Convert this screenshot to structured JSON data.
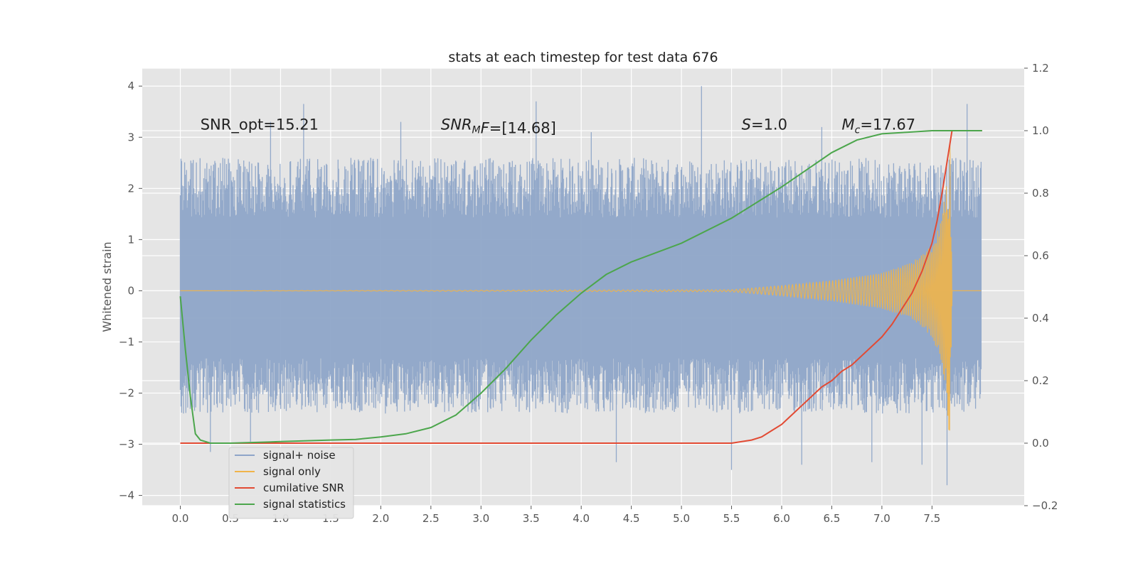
{
  "chart_data": {
    "type": "line",
    "title": "stats at each timestep for test data 676",
    "ylabel": "Whitened strain",
    "xlabel": "",
    "xlim": [
      -0.38,
      8.42
    ],
    "ylim": [
      -4.2,
      4.35
    ],
    "y2lim": [
      -0.2,
      1.2
    ],
    "x_ticks": [
      0.0,
      0.5,
      1.0,
      1.5,
      2.0,
      2.5,
      3.0,
      3.5,
      4.0,
      4.5,
      5.0,
      5.5,
      6.0,
      6.5,
      7.0,
      7.5
    ],
    "x_tick_labels": [
      "0.0",
      "0.5",
      "1.0",
      "1.5",
      "2.0",
      "2.5",
      "3.0",
      "3.5",
      "4.0",
      "4.5",
      "5.0",
      "5.5",
      "6.0",
      "6.5",
      "7.0",
      "7.5"
    ],
    "y_ticks": [
      -4,
      -3,
      -2,
      -1,
      0,
      1,
      2,
      3,
      4
    ],
    "y_tick_labels": [
      "−4",
      "−3",
      "−2",
      "−1",
      "0",
      "1",
      "2",
      "3",
      "4"
    ],
    "y2_ticks": [
      -0.2,
      0.0,
      0.2,
      0.4,
      0.6,
      0.8,
      1.0,
      1.2
    ],
    "y2_tick_labels": [
      "−0.2",
      "0.0",
      "0.2",
      "0.4",
      "0.6",
      "0.8",
      "1.0",
      "1.2"
    ],
    "grid": true,
    "legend_position": "lower-left",
    "annotations": [
      {
        "text": "SNR_opt=15.21",
        "x": 0.2,
        "y": 3.15
      },
      {
        "text": "SNR_MF=[14.68]",
        "x": 2.6,
        "y": 3.15
      },
      {
        "text": "S=1.0",
        "x": 5.6,
        "y": 3.15
      },
      {
        "text": "M_c=17.67",
        "x": 6.6,
        "y": 3.15
      }
    ],
    "series": [
      {
        "name": "signal+ noise",
        "color": "#8ea5c8",
        "axis": "left",
        "x_start": 0.0,
        "x_end": 7.99,
        "envelope_high": 2.6,
        "envelope_low": -2.4,
        "spike_peaks": [
          {
            "x": 1.23,
            "y": 3.65
          },
          {
            "x": 2.2,
            "y": 3.3
          },
          {
            "x": 3.55,
            "y": 3.7
          },
          {
            "x": 5.2,
            "y": 4.0
          },
          {
            "x": 7.85,
            "y": 3.65
          },
          {
            "x": 0.9,
            "y": 3.3
          },
          {
            "x": 4.1,
            "y": 3.1
          },
          {
            "x": 6.4,
            "y": 3.2
          }
        ],
        "spike_troughs": [
          {
            "x": 0.3,
            "y": -3.15
          },
          {
            "x": 0.7,
            "y": -2.95
          },
          {
            "x": 4.35,
            "y": -3.35
          },
          {
            "x": 5.5,
            "y": -3.5
          },
          {
            "x": 6.2,
            "y": -3.4
          },
          {
            "x": 6.9,
            "y": -3.35
          },
          {
            "x": 7.65,
            "y": -3.8
          },
          {
            "x": 7.4,
            "y": -3.4
          }
        ]
      },
      {
        "name": "signal only",
        "color": "#f0b44a",
        "axis": "left",
        "amplitude": {
          "x": [
            0.0,
            5.5,
            6.0,
            6.5,
            7.0,
            7.3,
            7.5,
            7.6,
            7.65,
            7.68,
            7.7,
            7.99
          ],
          "y": [
            0.0,
            0.02,
            0.1,
            0.2,
            0.35,
            0.55,
            0.9,
            1.4,
            2.2,
            3.1,
            0.0,
            0.0
          ]
        }
      },
      {
        "name": "cumilative SNR",
        "color": "#e24a33",
        "axis": "right",
        "x": [
          0.0,
          5.5,
          5.7,
          5.8,
          5.9,
          6.0,
          6.1,
          6.2,
          6.3,
          6.4,
          6.5,
          6.6,
          6.7,
          6.8,
          6.9,
          7.0,
          7.1,
          7.2,
          7.3,
          7.4,
          7.5,
          7.55,
          7.6,
          7.65,
          7.7,
          8.0
        ],
        "y": [
          0.0,
          0.0,
          0.01,
          0.02,
          0.04,
          0.06,
          0.09,
          0.12,
          0.15,
          0.18,
          0.2,
          0.23,
          0.25,
          0.28,
          0.31,
          0.34,
          0.38,
          0.43,
          0.48,
          0.55,
          0.64,
          0.71,
          0.8,
          0.9,
          1.0,
          1.0
        ]
      },
      {
        "name": "signal statistics",
        "color": "#4ca64c",
        "axis": "right",
        "x": [
          0.0,
          0.05,
          0.1,
          0.15,
          0.2,
          0.3,
          0.5,
          1.0,
          1.5,
          1.75,
          2.0,
          2.25,
          2.5,
          2.75,
          3.0,
          3.25,
          3.5,
          3.75,
          4.0,
          4.25,
          4.5,
          5.0,
          5.5,
          6.0,
          6.5,
          6.75,
          7.0,
          7.25,
          7.5,
          7.7,
          8.0
        ],
        "y": [
          0.47,
          0.3,
          0.15,
          0.03,
          0.01,
          0.0,
          0.0,
          0.005,
          0.01,
          0.012,
          0.02,
          0.03,
          0.05,
          0.09,
          0.16,
          0.24,
          0.33,
          0.41,
          0.48,
          0.54,
          0.58,
          0.64,
          0.72,
          0.82,
          0.93,
          0.97,
          0.99,
          0.995,
          1.0,
          1.0,
          1.0
        ]
      }
    ]
  }
}
